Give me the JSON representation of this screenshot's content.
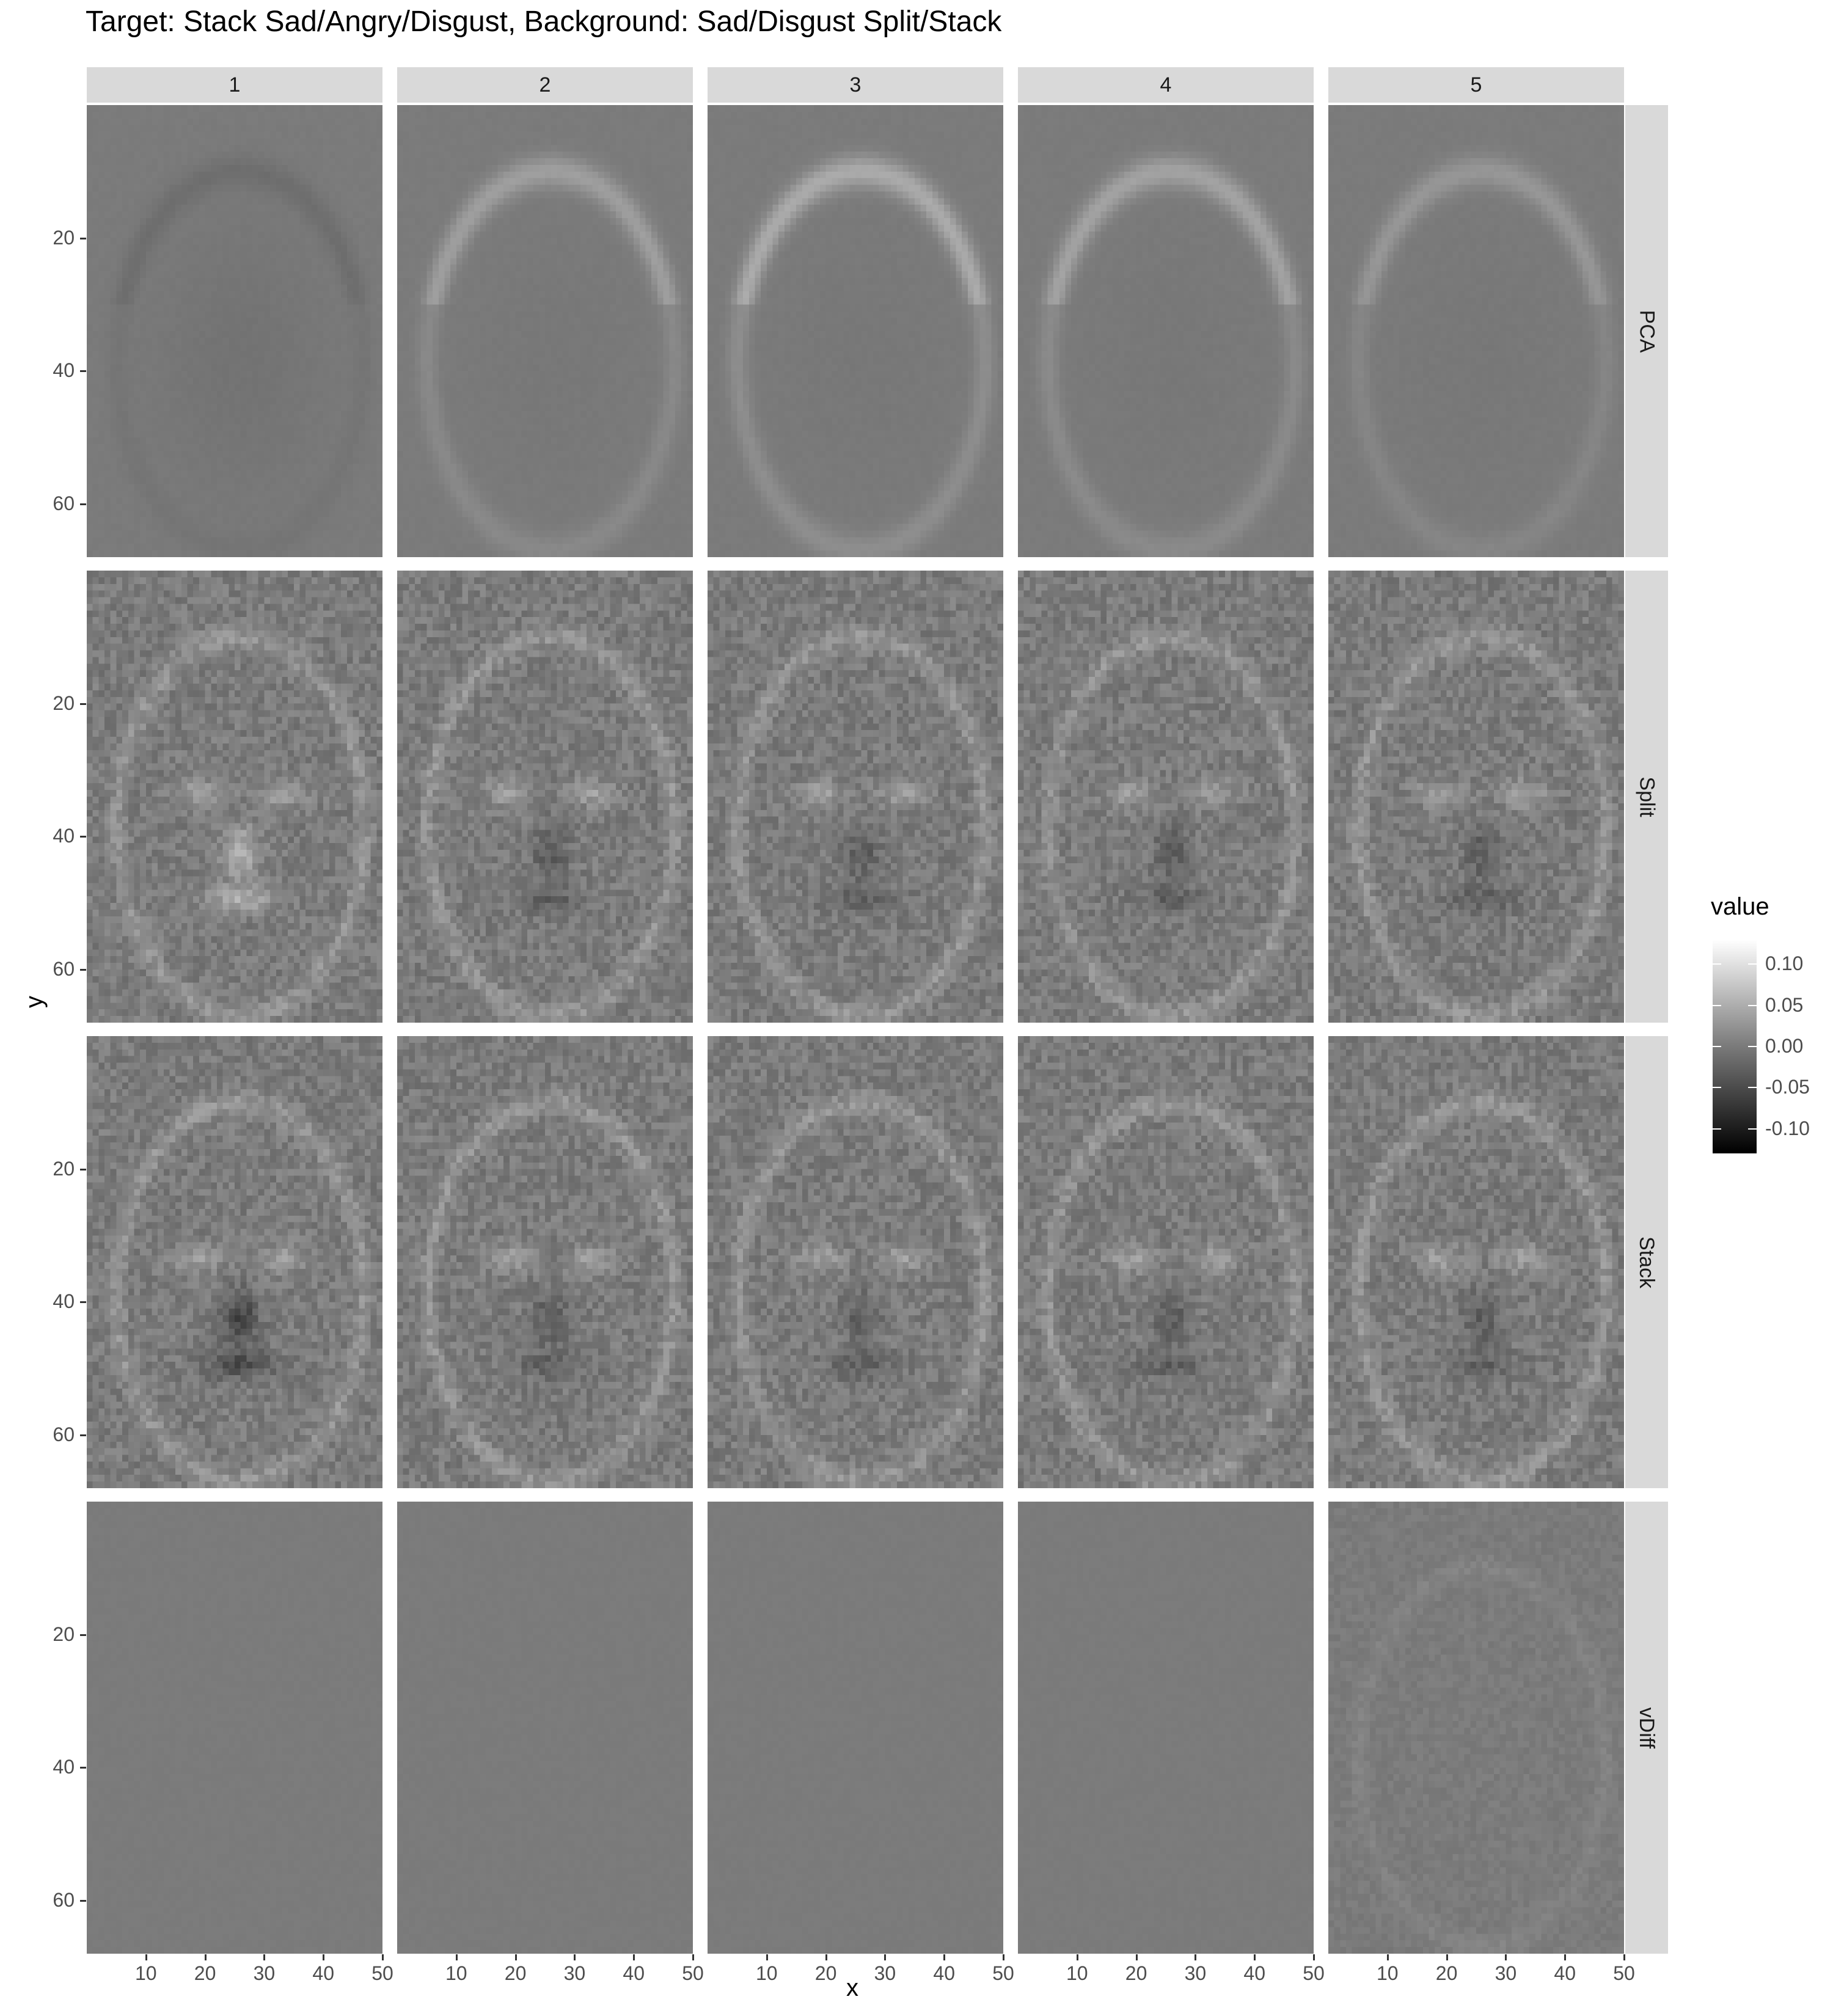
{
  "chart_data": {
    "type": "heatmap",
    "title": "Target: Stack Sad/Angry/Disgust, Background: Sad/Disgust Split/Stack",
    "xlabel": "x",
    "ylabel": "y",
    "columns": [
      "1",
      "2",
      "3",
      "4",
      "5"
    ],
    "rows": [
      "PCA",
      "Split",
      "Stack",
      "vDiff"
    ],
    "x_range": [
      0,
      50
    ],
    "y_range": [
      68,
      0
    ],
    "x_ticks": [
      10,
      20,
      30,
      40,
      50
    ],
    "y_ticks": [
      20,
      40,
      60
    ],
    "colorscale": {
      "name": "value",
      "low_color": "#000000",
      "high_color": "#ffffff",
      "range": [
        -0.13,
        0.13
      ],
      "ticks": [
        0.1,
        0.05,
        0.0,
        -0.05,
        -0.1
      ],
      "tick_labels": [
        "0.10",
        "0.05",
        "0.00",
        "-0.05",
        "-0.10"
      ]
    },
    "legend_position": "right",
    "grid": false
  }
}
